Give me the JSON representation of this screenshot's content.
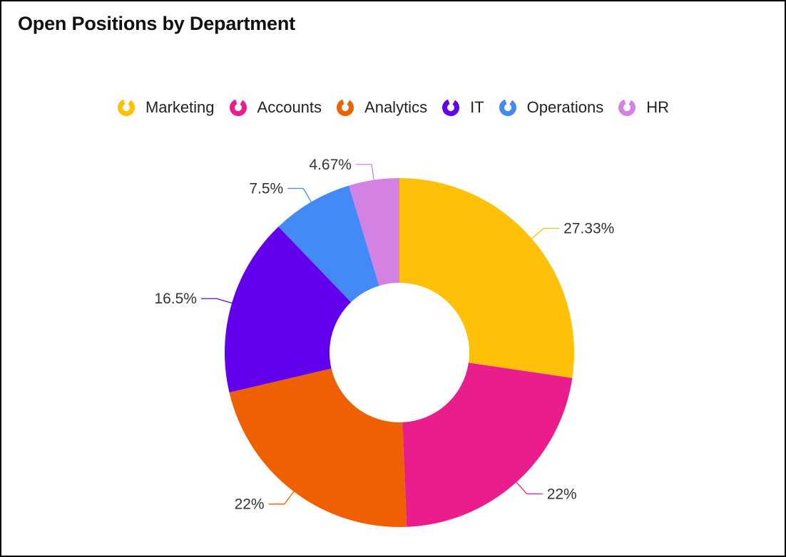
{
  "title": "Open Positions by Department",
  "chart_data": {
    "type": "pie",
    "variant": "donut",
    "title": "Open Positions by Department",
    "legend_position": "top",
    "categories": [
      "Marketing",
      "Accounts",
      "Analytics",
      "IT",
      "Operations",
      "HR"
    ],
    "values": [
      27.33,
      22,
      22,
      16.5,
      7.5,
      4.67
    ],
    "labels": [
      "27.33%",
      "22%",
      "22%",
      "16.5%",
      "7.5%",
      "4.67%"
    ],
    "colors": [
      "#FFC107",
      "#E91E8C",
      "#EE6002",
      "#6200EE",
      "#448AF7",
      "#D381E3"
    ],
    "unit": "%"
  }
}
